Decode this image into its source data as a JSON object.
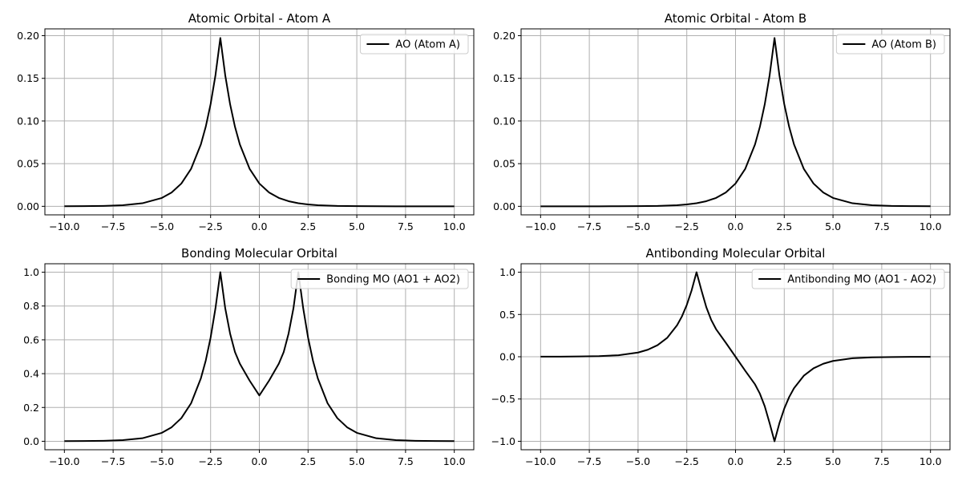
{
  "chart_data": [
    {
      "type": "line",
      "title": "Atomic Orbital - Atom A",
      "xlim": [
        -11,
        11
      ],
      "ylim": [
        -0.01,
        0.208
      ],
      "xticks": [
        -10,
        -7.5,
        -5,
        -2.5,
        0,
        2.5,
        5,
        7.5,
        10
      ],
      "xtick_labels": [
        "−10.0",
        "−7.5",
        "−5.0",
        "−2.5",
        "0.0",
        "2.5",
        "5.0",
        "7.5",
        "10.0"
      ],
      "yticks": [
        0,
        0.05,
        0.1,
        0.15,
        0.2
      ],
      "ytick_labels": [
        "0.00",
        "0.05",
        "0.10",
        "0.15",
        "0.20"
      ],
      "grid": true,
      "legend": "upper-right",
      "series": [
        {
          "name": "AO (Atom A)",
          "color": "#000000",
          "x": [
            -10,
            -9,
            -8,
            -7,
            -6,
            -5,
            -4.5,
            -4,
            -3.5,
            -3,
            -2.75,
            -2.5,
            -2.25,
            -2,
            -1.75,
            -1.5,
            -1.25,
            -1,
            -0.5,
            0,
            0.5,
            1,
            1.5,
            2,
            2.5,
            3,
            4,
            5,
            6,
            7,
            8,
            9,
            10
          ],
          "y": [
            0.0001,
            0.0002,
            0.0005,
            0.0013,
            0.0036,
            0.0098,
            0.0162,
            0.0267,
            0.044,
            0.0726,
            0.0932,
            0.1197,
            0.1537,
            0.1973,
            0.1537,
            0.1197,
            0.0932,
            0.0726,
            0.044,
            0.0267,
            0.0162,
            0.0098,
            0.006,
            0.0036,
            0.0022,
            0.0013,
            0.0005,
            0.0002,
            0.0001,
            0.0,
            0.0,
            0.0,
            0.0
          ]
        }
      ]
    },
    {
      "type": "line",
      "title": "Atomic Orbital - Atom B",
      "xlim": [
        -11,
        11
      ],
      "ylim": [
        -0.01,
        0.208
      ],
      "xticks": [
        -10,
        -7.5,
        -5,
        -2.5,
        0,
        2.5,
        5,
        7.5,
        10
      ],
      "xtick_labels": [
        "−10.0",
        "−7.5",
        "−5.0",
        "−2.5",
        "0.0",
        "2.5",
        "5.0",
        "7.5",
        "10.0"
      ],
      "yticks": [
        0,
        0.05,
        0.1,
        0.15,
        0.2
      ],
      "ytick_labels": [
        "0.00",
        "0.05",
        "0.10",
        "0.15",
        "0.20"
      ],
      "grid": true,
      "legend": "upper-right",
      "series": [
        {
          "name": "AO (Atom B)",
          "color": "#000000",
          "x": [
            -10,
            -9,
            -8,
            -7,
            -6,
            -5,
            -4,
            -3,
            -2.5,
            -2,
            -1.5,
            -1,
            -0.5,
            0,
            0.5,
            1,
            1.25,
            1.5,
            1.75,
            2,
            2.25,
            2.5,
            2.75,
            3,
            3.5,
            4,
            4.5,
            5,
            6,
            7,
            8,
            9,
            10
          ],
          "y": [
            0.0,
            0.0,
            0.0,
            0.0,
            0.0001,
            0.0002,
            0.0005,
            0.0013,
            0.0022,
            0.0036,
            0.006,
            0.0098,
            0.0162,
            0.0267,
            0.044,
            0.0726,
            0.0932,
            0.1197,
            0.1537,
            0.1973,
            0.1537,
            0.1197,
            0.0932,
            0.0726,
            0.044,
            0.0267,
            0.0162,
            0.0098,
            0.0036,
            0.0013,
            0.0005,
            0.0002,
            0.0001
          ]
        }
      ]
    },
    {
      "type": "line",
      "title": "Bonding Molecular Orbital",
      "xlim": [
        -11,
        11
      ],
      "ylim": [
        -0.05,
        1.05
      ],
      "xticks": [
        -10,
        -7.5,
        -5,
        -2.5,
        0,
        2.5,
        5,
        7.5,
        10
      ],
      "xtick_labels": [
        "−10.0",
        "−7.5",
        "−5.0",
        "−2.5",
        "0.0",
        "2.5",
        "5.0",
        "7.5",
        "10.0"
      ],
      "yticks": [
        0,
        0.2,
        0.4,
        0.6,
        0.8,
        1.0
      ],
      "ytick_labels": [
        "0.0",
        "0.2",
        "0.4",
        "0.6",
        "0.8",
        "1.0"
      ],
      "grid": true,
      "legend": "upper-right",
      "series": [
        {
          "name": "Bonding MO (AO1 + AO2)",
          "color": "#000000",
          "x": [
            -10,
            -9,
            -8,
            -7,
            -6,
            -5,
            -4.5,
            -4,
            -3.5,
            -3,
            -2.75,
            -2.5,
            -2.25,
            -2,
            -1.75,
            -1.5,
            -1.25,
            -1,
            -0.5,
            0,
            0.5,
            1,
            1.25,
            1.5,
            1.75,
            2,
            2.25,
            2.5,
            2.75,
            3,
            3.5,
            4,
            4.5,
            5,
            6,
            7,
            8,
            9,
            10
          ],
          "y": [
            0.001,
            0.0015,
            0.003,
            0.007,
            0.018,
            0.05,
            0.083,
            0.137,
            0.225,
            0.372,
            0.477,
            0.613,
            0.787,
            1.0,
            0.787,
            0.637,
            0.528,
            0.459,
            0.359,
            0.271,
            0.359,
            0.459,
            0.528,
            0.637,
            0.787,
            1.0,
            0.787,
            0.613,
            0.477,
            0.372,
            0.225,
            0.137,
            0.083,
            0.05,
            0.018,
            0.007,
            0.003,
            0.0015,
            0.001
          ]
        }
      ]
    },
    {
      "type": "line",
      "title": "Antibonding Molecular Orbital",
      "xlim": [
        -11,
        11
      ],
      "ylim": [
        -1.1,
        1.1
      ],
      "xticks": [
        -10,
        -7.5,
        -5,
        -2.5,
        0,
        2.5,
        5,
        7.5,
        10
      ],
      "xtick_labels": [
        "−10.0",
        "−7.5",
        "−5.0",
        "−2.5",
        "0.0",
        "2.5",
        "5.0",
        "7.5",
        "10.0"
      ],
      "yticks": [
        -1.0,
        -0.5,
        0,
        0.5,
        1.0
      ],
      "ytick_labels": [
        "−1.0",
        "−0.5",
        "0.0",
        "0.5",
        "1.0"
      ],
      "grid": true,
      "legend": "upper-right",
      "series": [
        {
          "name": "Antibonding MO (AO1 - AO2)",
          "color": "#000000",
          "x": [
            -10,
            -9,
            -8,
            -7,
            -6,
            -5,
            -4.5,
            -4,
            -3.5,
            -3,
            -2.75,
            -2.5,
            -2.25,
            -2,
            -1.75,
            -1.5,
            -1.25,
            -1,
            -0.5,
            0,
            0.5,
            1,
            1.25,
            1.5,
            1.75,
            2,
            2.25,
            2.5,
            2.75,
            3,
            3.5,
            4,
            4.5,
            5,
            6,
            7,
            8,
            9,
            10
          ],
          "y": [
            0.001,
            0.0015,
            0.003,
            0.007,
            0.018,
            0.05,
            0.083,
            0.137,
            0.225,
            0.372,
            0.477,
            0.613,
            0.787,
            1.0,
            0.787,
            0.587,
            0.437,
            0.327,
            0.166,
            0.0,
            -0.166,
            -0.327,
            -0.437,
            -0.587,
            -0.787,
            -1.0,
            -0.787,
            -0.613,
            -0.477,
            -0.372,
            -0.225,
            -0.137,
            -0.083,
            -0.05,
            -0.018,
            -0.007,
            -0.003,
            -0.0015,
            -0.001
          ]
        }
      ]
    }
  ]
}
